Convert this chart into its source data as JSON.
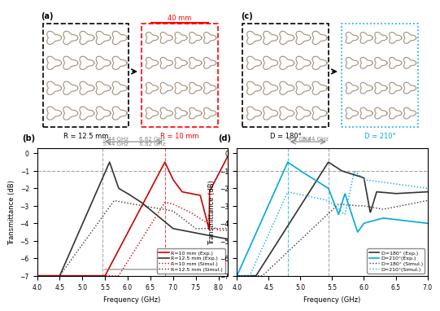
{
  "panel_b": {
    "title_annotation": "5.44 GHz → 6.82 GHz",
    "freq_marker1": 5.44,
    "freq_marker2": 6.82,
    "xlim": [
      4,
      8.2
    ],
    "ylim": [
      -7,
      0.3
    ],
    "yticks": [
      0,
      -1,
      -2,
      -3,
      -4,
      -5,
      -6,
      -7
    ],
    "hline_y": -1,
    "colors": {
      "R10_exp": "#cc0000",
      "R125_exp": "#333333",
      "R10_sim": "#cc0000",
      "R125_sim": "#333333"
    }
  },
  "panel_d": {
    "title_annotation": "4.80 GHz → 5.44 GHz",
    "freq_marker1": 4.8,
    "freq_marker2": 5.44,
    "xlim": [
      4,
      7
    ],
    "ylim": [
      -7,
      0.3
    ],
    "yticks": [
      0,
      -1,
      -2,
      -3,
      -4,
      -5,
      -6,
      -7
    ],
    "hline_y": -1,
    "colors": {
      "D180_exp": "#333333",
      "D210_exp": "#00aadd",
      "D180_sim": "#333333",
      "D210_sim": "#00aadd"
    }
  }
}
